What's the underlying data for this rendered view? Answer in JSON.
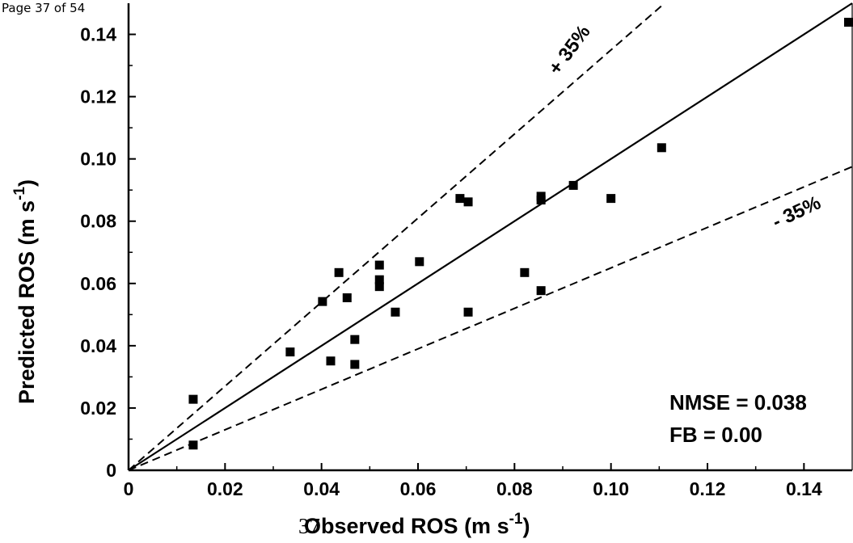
{
  "page": {
    "header": "Page 37 of 54",
    "footer_number": "37"
  },
  "chart_data": {
    "type": "scatter",
    "xlabel": "Observed ROS  (m s",
    "xlabel_sup": "-1",
    "xlabel_tail": ")",
    "ylabel": "Predicted ROS  (m s",
    "ylabel_sup": "-1",
    "ylabel_tail": ")",
    "xlim": [
      0,
      0.15
    ],
    "ylim": [
      0,
      0.15
    ],
    "x_ticks": [
      {
        "value": 0,
        "label": "0"
      },
      {
        "value": 0.02,
        "label": "0.02"
      },
      {
        "value": 0.04,
        "label": "0.04"
      },
      {
        "value": 0.06,
        "label": "0.06"
      },
      {
        "value": 0.08,
        "label": "0.08"
      },
      {
        "value": 0.1,
        "label": "0.10"
      },
      {
        "value": 0.12,
        "label": "0.12"
      },
      {
        "value": 0.14,
        "label": "0.14"
      }
    ],
    "y_ticks": [
      {
        "value": 0,
        "label": "0"
      },
      {
        "value": 0.02,
        "label": "0.02"
      },
      {
        "value": 0.04,
        "label": "0.04"
      },
      {
        "value": 0.06,
        "label": "0.06"
      },
      {
        "value": 0.08,
        "label": "0.08"
      },
      {
        "value": 0.1,
        "label": "0.10"
      },
      {
        "value": 0.12,
        "label": "0.12"
      },
      {
        "value": 0.14,
        "label": "0.14"
      }
    ],
    "reference_lines": [
      {
        "kind": "one-to-one",
        "slope": 1.0,
        "style": "solid"
      },
      {
        "kind": "plus-35",
        "slope": 1.35,
        "style": "dashed",
        "label": "+ 35%"
      },
      {
        "kind": "minus-35",
        "slope": 0.65,
        "style": "dashed",
        "label": "- 35%"
      }
    ],
    "stats": {
      "nmse": "NMSE = 0.038",
      "fb": "FB = 0.00"
    },
    "points": [
      {
        "x": 0.0134,
        "y": 0.0228
      },
      {
        "x": 0.0134,
        "y": 0.0081
      },
      {
        "x": 0.0335,
        "y": 0.038
      },
      {
        "x": 0.0402,
        "y": 0.0542
      },
      {
        "x": 0.0419,
        "y": 0.0351
      },
      {
        "x": 0.0436,
        "y": 0.0635
      },
      {
        "x": 0.0453,
        "y": 0.0554
      },
      {
        "x": 0.0469,
        "y": 0.042
      },
      {
        "x": 0.0469,
        "y": 0.034
      },
      {
        "x": 0.052,
        "y": 0.0659
      },
      {
        "x": 0.052,
        "y": 0.0612
      },
      {
        "x": 0.052,
        "y": 0.059
      },
      {
        "x": 0.0553,
        "y": 0.0508
      },
      {
        "x": 0.0603,
        "y": 0.067
      },
      {
        "x": 0.0687,
        "y": 0.0873
      },
      {
        "x": 0.0704,
        "y": 0.0862
      },
      {
        "x": 0.0704,
        "y": 0.0508
      },
      {
        "x": 0.0821,
        "y": 0.0635
      },
      {
        "x": 0.0855,
        "y": 0.088
      },
      {
        "x": 0.0855,
        "y": 0.0868
      },
      {
        "x": 0.0855,
        "y": 0.0577
      },
      {
        "x": 0.0922,
        "y": 0.0915
      },
      {
        "x": 0.1,
        "y": 0.0873
      },
      {
        "x": 0.1105,
        "y": 0.1036
      },
      {
        "x": 0.15,
        "y": 0.1439
      }
    ]
  }
}
